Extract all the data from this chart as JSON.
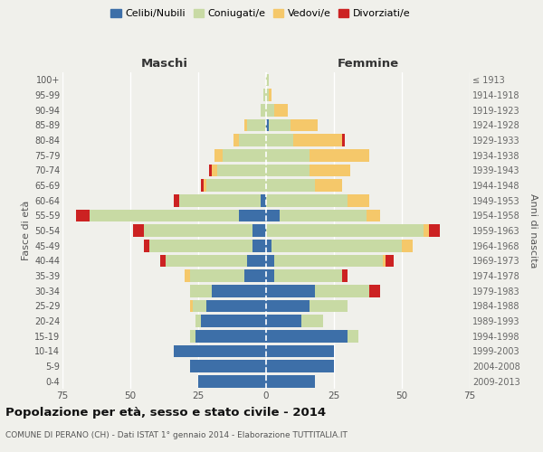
{
  "age_groups": [
    "0-4",
    "5-9",
    "10-14",
    "15-19",
    "20-24",
    "25-29",
    "30-34",
    "35-39",
    "40-44",
    "45-49",
    "50-54",
    "55-59",
    "60-64",
    "65-69",
    "70-74",
    "75-79",
    "80-84",
    "85-89",
    "90-94",
    "95-99",
    "100+"
  ],
  "birth_years": [
    "2009-2013",
    "2004-2008",
    "1999-2003",
    "1994-1998",
    "1989-1993",
    "1984-1988",
    "1979-1983",
    "1974-1978",
    "1969-1973",
    "1964-1968",
    "1959-1963",
    "1954-1958",
    "1949-1953",
    "1944-1948",
    "1939-1943",
    "1934-1938",
    "1929-1933",
    "1924-1928",
    "1919-1923",
    "1914-1918",
    "≤ 1913"
  ],
  "males": {
    "celibe": [
      25,
      28,
      34,
      26,
      24,
      22,
      20,
      8,
      7,
      5,
      5,
      10,
      2,
      0,
      0,
      0,
      0,
      0,
      0,
      0,
      0
    ],
    "coniugato": [
      0,
      0,
      0,
      2,
      2,
      5,
      8,
      20,
      30,
      38,
      40,
      55,
      30,
      22,
      18,
      16,
      10,
      7,
      2,
      1,
      0
    ],
    "vedovo": [
      0,
      0,
      0,
      0,
      0,
      1,
      0,
      2,
      0,
      0,
      0,
      0,
      0,
      1,
      2,
      3,
      2,
      1,
      0,
      0,
      0
    ],
    "divorziato": [
      0,
      0,
      0,
      0,
      0,
      0,
      0,
      0,
      2,
      2,
      4,
      5,
      2,
      1,
      1,
      0,
      0,
      0,
      0,
      0,
      0
    ]
  },
  "females": {
    "nubile": [
      18,
      25,
      25,
      30,
      13,
      16,
      18,
      3,
      3,
      2,
      0,
      5,
      0,
      0,
      0,
      0,
      0,
      1,
      0,
      0,
      0
    ],
    "coniugata": [
      0,
      0,
      0,
      4,
      8,
      14,
      20,
      25,
      40,
      48,
      58,
      32,
      30,
      18,
      16,
      16,
      10,
      8,
      3,
      1,
      1
    ],
    "vedova": [
      0,
      0,
      0,
      0,
      0,
      0,
      0,
      0,
      1,
      4,
      2,
      5,
      8,
      10,
      15,
      22,
      18,
      10,
      5,
      1,
      0
    ],
    "divorziata": [
      0,
      0,
      0,
      0,
      0,
      0,
      4,
      2,
      3,
      0,
      4,
      0,
      0,
      0,
      0,
      0,
      1,
      0,
      0,
      0,
      0
    ]
  },
  "colors": {
    "celibe": "#3d6fa8",
    "coniugato": "#c8daa4",
    "vedovo": "#f5c86a",
    "divorziato": "#cc2222"
  },
  "legend_labels": [
    "Celibi/Nubili",
    "Coniugati/e",
    "Vedovi/e",
    "Divorziati/e"
  ],
  "xlim": 75,
  "title": "Popolazione per età, sesso e stato civile - 2014",
  "subtitle": "COMUNE DI PERANO (CH) - Dati ISTAT 1° gennaio 2014 - Elaborazione TUTTITALIA.IT",
  "ylabel_left": "Fasce di età",
  "ylabel_right": "Anni di nascita",
  "xlabel_left": "Maschi",
  "xlabel_right": "Femmine",
  "bg_color": "#f0f0eb"
}
